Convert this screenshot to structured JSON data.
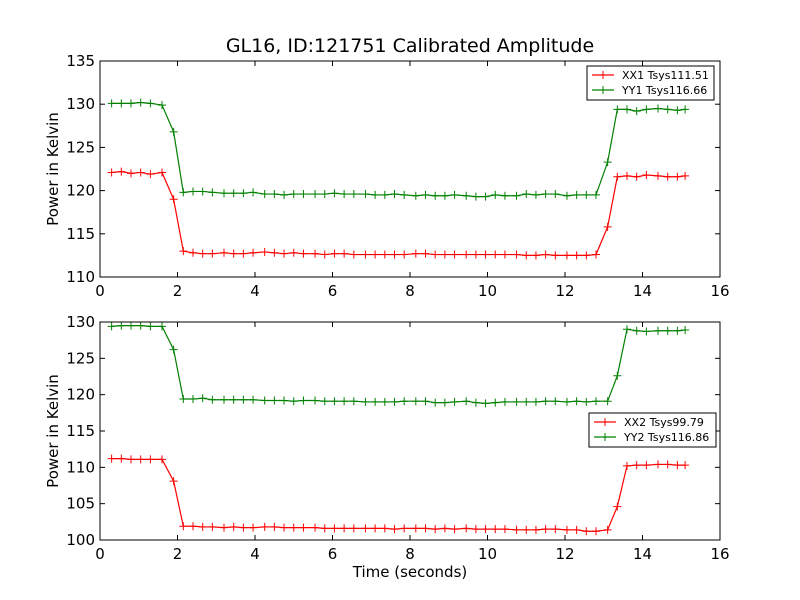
{
  "figure": {
    "title": "GL16, ID:121751 Calibrated Amplitude"
  },
  "colors": {
    "xx": "#ff0000",
    "yy": "#008000"
  },
  "chart_data": [
    {
      "type": "line",
      "title": "GL16, ID:121751 Calibrated Amplitude",
      "xlabel": "",
      "ylabel": "Power in Kelvin",
      "xlim": [
        0,
        16
      ],
      "ylim": [
        110,
        135
      ],
      "xticks": [
        0,
        2,
        4,
        6,
        8,
        10,
        12,
        14,
        16
      ],
      "yticks": [
        110,
        115,
        120,
        125,
        130,
        135
      ],
      "grid": false,
      "legend": "top-right",
      "series": [
        {
          "name": "XX1 Tsys111.51",
          "color": "#ff0000",
          "marker": "+",
          "x": [
            0.3,
            0.55,
            0.8,
            1.05,
            1.3,
            1.6,
            1.9,
            2.15,
            2.4,
            2.65,
            2.9,
            3.2,
            3.45,
            3.7,
            3.95,
            4.25,
            4.5,
            4.75,
            5.0,
            5.25,
            5.55,
            5.8,
            6.05,
            6.3,
            6.55,
            6.85,
            7.1,
            7.35,
            7.6,
            7.85,
            8.15,
            8.4,
            8.65,
            8.9,
            9.15,
            9.45,
            9.7,
            9.95,
            10.2,
            10.45,
            10.75,
            11.0,
            11.25,
            11.5,
            11.75,
            12.05,
            12.3,
            12.55,
            12.8,
            13.1,
            13.35,
            13.6,
            13.85,
            14.1,
            14.4,
            14.65,
            14.9,
            15.1
          ],
          "y": [
            122.1,
            122.2,
            122.0,
            122.1,
            121.9,
            122.1,
            119.0,
            113.0,
            112.8,
            112.7,
            112.7,
            112.8,
            112.7,
            112.7,
            112.8,
            112.9,
            112.8,
            112.7,
            112.8,
            112.7,
            112.7,
            112.6,
            112.7,
            112.7,
            112.6,
            112.6,
            112.6,
            112.6,
            112.6,
            112.6,
            112.7,
            112.7,
            112.6,
            112.6,
            112.6,
            112.6,
            112.6,
            112.6,
            112.6,
            112.6,
            112.6,
            112.5,
            112.5,
            112.6,
            112.5,
            112.5,
            112.5,
            112.5,
            112.6,
            115.8,
            121.6,
            121.7,
            121.6,
            121.8,
            121.7,
            121.6,
            121.6,
            121.7
          ]
        },
        {
          "name": "YY1 Tsys116.66",
          "color": "#008000",
          "marker": "+",
          "x": [
            0.3,
            0.55,
            0.8,
            1.05,
            1.3,
            1.6,
            1.9,
            2.15,
            2.4,
            2.65,
            2.9,
            3.2,
            3.45,
            3.7,
            3.95,
            4.25,
            4.5,
            4.75,
            5.0,
            5.25,
            5.55,
            5.8,
            6.05,
            6.3,
            6.55,
            6.85,
            7.1,
            7.35,
            7.6,
            7.85,
            8.15,
            8.4,
            8.65,
            8.9,
            9.15,
            9.45,
            9.7,
            9.95,
            10.2,
            10.45,
            10.75,
            11.0,
            11.25,
            11.5,
            11.75,
            12.05,
            12.3,
            12.55,
            12.8,
            13.1,
            13.35,
            13.6,
            13.85,
            14.1,
            14.4,
            14.65,
            14.9,
            15.1
          ],
          "y": [
            130.1,
            130.1,
            130.1,
            130.2,
            130.1,
            129.9,
            126.8,
            119.8,
            119.9,
            119.9,
            119.8,
            119.7,
            119.7,
            119.7,
            119.8,
            119.6,
            119.6,
            119.5,
            119.6,
            119.6,
            119.6,
            119.6,
            119.7,
            119.6,
            119.6,
            119.6,
            119.5,
            119.5,
            119.6,
            119.5,
            119.4,
            119.5,
            119.4,
            119.4,
            119.5,
            119.4,
            119.3,
            119.3,
            119.5,
            119.4,
            119.4,
            119.6,
            119.5,
            119.6,
            119.6,
            119.4,
            119.5,
            119.5,
            119.5,
            123.3,
            129.4,
            129.4,
            129.2,
            129.4,
            129.5,
            129.4,
            129.3,
            129.4
          ]
        }
      ]
    },
    {
      "type": "line",
      "title": "",
      "xlabel": "Time (seconds)",
      "ylabel": "Power in Kelvin",
      "xlim": [
        0,
        16
      ],
      "ylim": [
        100,
        130
      ],
      "xticks": [
        0,
        2,
        4,
        6,
        8,
        10,
        12,
        14,
        16
      ],
      "yticks": [
        100,
        105,
        110,
        115,
        120,
        125,
        130
      ],
      "grid": false,
      "legend": "right",
      "series": [
        {
          "name": "XX2 Tsys99.79",
          "color": "#ff0000",
          "marker": "+",
          "x": [
            0.3,
            0.55,
            0.8,
            1.05,
            1.3,
            1.6,
            1.9,
            2.15,
            2.4,
            2.65,
            2.9,
            3.2,
            3.45,
            3.7,
            3.95,
            4.25,
            4.5,
            4.75,
            5.0,
            5.25,
            5.55,
            5.8,
            6.05,
            6.3,
            6.55,
            6.85,
            7.1,
            7.35,
            7.6,
            7.85,
            8.15,
            8.4,
            8.65,
            8.9,
            9.15,
            9.45,
            9.7,
            9.95,
            10.2,
            10.45,
            10.75,
            11.0,
            11.25,
            11.5,
            11.75,
            12.05,
            12.3,
            12.55,
            12.8,
            13.1,
            13.35,
            13.6,
            13.85,
            14.1,
            14.4,
            14.65,
            14.9,
            15.1
          ],
          "y": [
            111.2,
            111.2,
            111.1,
            111.1,
            111.1,
            111.1,
            108.1,
            101.9,
            101.9,
            101.8,
            101.8,
            101.7,
            101.8,
            101.7,
            101.7,
            101.8,
            101.8,
            101.7,
            101.7,
            101.7,
            101.7,
            101.6,
            101.6,
            101.6,
            101.6,
            101.6,
            101.6,
            101.6,
            101.5,
            101.6,
            101.6,
            101.6,
            101.5,
            101.6,
            101.5,
            101.6,
            101.5,
            101.5,
            101.5,
            101.5,
            101.4,
            101.4,
            101.4,
            101.5,
            101.5,
            101.4,
            101.4,
            101.2,
            101.2,
            101.4,
            104.6,
            110.2,
            110.3,
            110.3,
            110.4,
            110.4,
            110.3,
            110.3
          ]
        },
        {
          "name": "YY2 Tsys116.86",
          "color": "#008000",
          "marker": "+",
          "x": [
            0.3,
            0.55,
            0.8,
            1.05,
            1.3,
            1.6,
            1.9,
            2.15,
            2.4,
            2.65,
            2.9,
            3.2,
            3.45,
            3.7,
            3.95,
            4.25,
            4.5,
            4.75,
            5.0,
            5.25,
            5.55,
            5.8,
            6.05,
            6.3,
            6.55,
            6.85,
            7.1,
            7.35,
            7.6,
            7.85,
            8.15,
            8.4,
            8.65,
            8.9,
            9.15,
            9.45,
            9.7,
            9.95,
            10.2,
            10.45,
            10.75,
            11.0,
            11.25,
            11.5,
            11.75,
            12.05,
            12.3,
            12.55,
            12.8,
            13.1,
            13.35,
            13.6,
            13.85,
            14.1,
            14.4,
            14.65,
            14.9,
            15.1
          ],
          "y": [
            129.4,
            129.5,
            129.5,
            129.5,
            129.4,
            129.4,
            126.2,
            119.4,
            119.4,
            119.5,
            119.3,
            119.3,
            119.3,
            119.3,
            119.3,
            119.2,
            119.2,
            119.2,
            119.1,
            119.2,
            119.2,
            119.1,
            119.1,
            119.1,
            119.1,
            119.0,
            119.0,
            119.0,
            119.0,
            119.1,
            119.1,
            119.1,
            118.9,
            118.9,
            119.0,
            119.1,
            118.9,
            118.8,
            118.9,
            119.0,
            119.0,
            119.0,
            119.0,
            119.1,
            119.1,
            119.0,
            119.1,
            119.0,
            119.1,
            119.1,
            122.6,
            129.0,
            128.8,
            128.7,
            128.8,
            128.8,
            128.8,
            128.9
          ]
        }
      ]
    }
  ]
}
